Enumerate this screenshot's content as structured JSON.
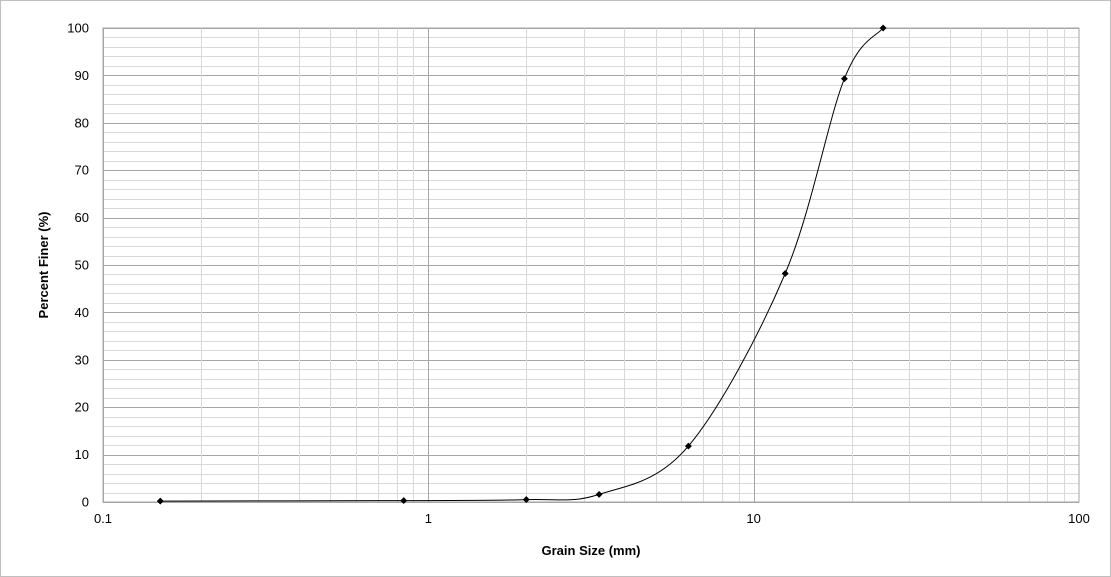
{
  "chart_data": {
    "type": "scatter",
    "title": "",
    "xlabel": "Grain Size (mm)",
    "ylabel": "Percent Finer (%)",
    "x_scale": "log",
    "xlim": [
      0.1,
      100
    ],
    "ylim": [
      0,
      100
    ],
    "x_tick_labels": [
      "0.1",
      "1",
      "10",
      "100"
    ],
    "y_tick_labels": [
      "0",
      "10",
      "20",
      "30",
      "40",
      "50",
      "60",
      "70",
      "80",
      "90",
      "100"
    ],
    "grid": true,
    "legend": "none",
    "marker": "diamond",
    "line": "smooth",
    "series": [
      {
        "points": [
          {
            "x": 0.15,
            "y": 0.2
          },
          {
            "x": 0.84,
            "y": 0.3
          },
          {
            "x": 2.0,
            "y": 0.5
          },
          {
            "x": 3.35,
            "y": 1.6
          },
          {
            "x": 6.3,
            "y": 11.8
          },
          {
            "x": 12.5,
            "y": 48.2
          },
          {
            "x": 19.0,
            "y": 89.3
          },
          {
            "x": 25.0,
            "y": 100
          }
        ]
      }
    ],
    "colors": {
      "series": "#000000",
      "major_grid": "#a6a6a6",
      "minor_grid": "#d9d9d9"
    }
  }
}
